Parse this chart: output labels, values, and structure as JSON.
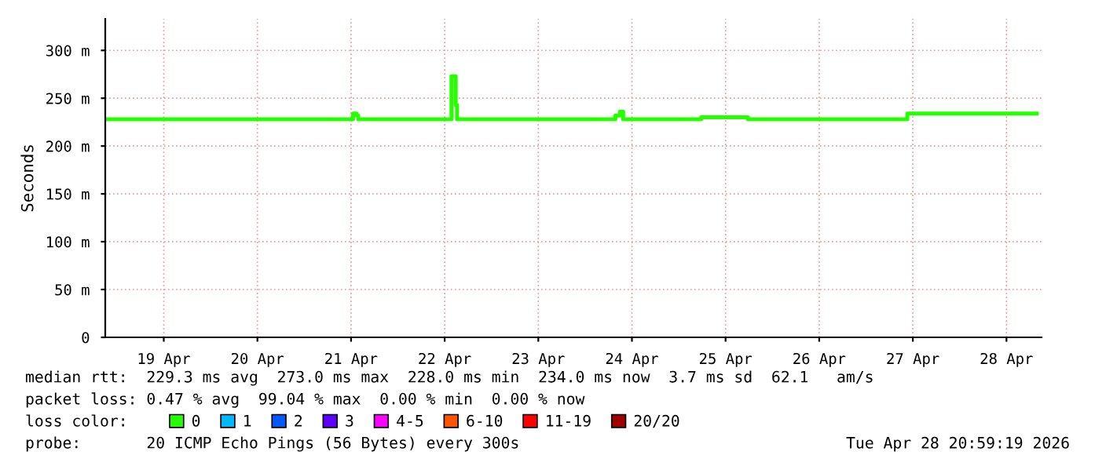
{
  "chart_data": {
    "type": "step",
    "ylabel": "Seconds",
    "legend_title": "loss color:",
    "legend": "bottom",
    "grid": true,
    "x": [
      "2026-04-18T21:20",
      "2026-04-21T12:30",
      "2026-04-21T13:25",
      "2026-04-21T13:50",
      "2026-04-22T13:45",
      "2026-04-22T14:50",
      "2026-04-22T15:10",
      "2026-04-24T07:45",
      "2026-04-24T08:55",
      "2026-04-24T09:45",
      "2026-04-25T05:45",
      "2026-04-25T17:45",
      "2026-04-27T10:35",
      "2026-04-28T19:45"
    ],
    "series": [
      {
        "name": "0",
        "color": "#26ff00",
        "values": [
          228,
          234,
          232,
          228,
          273,
          243,
          228,
          232,
          236,
          228,
          230,
          228,
          234,
          234
        ]
      },
      {
        "name": "1",
        "color": "#00b8ff",
        "values": [
          null,
          null,
          null,
          null,
          null,
          null,
          null,
          null,
          null,
          null,
          null,
          null,
          null,
          null
        ]
      },
      {
        "name": "2",
        "color": "#0059ff",
        "values": [
          null,
          null,
          null,
          null,
          null,
          null,
          null,
          null,
          null,
          null,
          null,
          null,
          null,
          null
        ]
      },
      {
        "name": "3",
        "color": "#5e00ff",
        "values": [
          null,
          null,
          null,
          null,
          null,
          null,
          null,
          null,
          null,
          null,
          null,
          null,
          null,
          null
        ]
      },
      {
        "name": "4-5",
        "color": "#ff00ff",
        "values": [
          null,
          null,
          null,
          null,
          null,
          null,
          null,
          null,
          null,
          null,
          null,
          null,
          null,
          null
        ]
      },
      {
        "name": "6-10",
        "color": "#ff5500",
        "values": [
          null,
          null,
          null,
          null,
          null,
          null,
          null,
          null,
          null,
          null,
          null,
          null,
          null,
          null
        ]
      },
      {
        "name": "11-19",
        "color": "#ff0000",
        "values": [
          null,
          null,
          null,
          null,
          null,
          null,
          null,
          null,
          null,
          null,
          null,
          null,
          null,
          null
        ]
      },
      {
        "name": "20/20",
        "color": "#a10000",
        "values": [
          null,
          null,
          null,
          null,
          null,
          null,
          null,
          null,
          null,
          null,
          null,
          null,
          null,
          null
        ]
      }
    ],
    "xlim": [
      "2026-04-18T21:00",
      "2026-04-28T21:00"
    ],
    "xticks": [
      {
        "value": "2026-04-19T12:00",
        "label": "19 Apr"
      },
      {
        "value": "2026-04-20T12:00",
        "label": "20 Apr"
      },
      {
        "value": "2026-04-21T12:00",
        "label": "21 Apr"
      },
      {
        "value": "2026-04-22T12:00",
        "label": "22 Apr"
      },
      {
        "value": "2026-04-23T12:00",
        "label": "23 Apr"
      },
      {
        "value": "2026-04-24T12:00",
        "label": "24 Apr"
      },
      {
        "value": "2026-04-25T12:00",
        "label": "25 Apr"
      },
      {
        "value": "2026-04-26T12:00",
        "label": "26 Apr"
      },
      {
        "value": "2026-04-27T12:00",
        "label": "27 Apr"
      },
      {
        "value": "2026-04-28T12:00",
        "label": "28 Apr"
      }
    ],
    "ylim": [
      0,
      333
    ],
    "yticks": [
      {
        "value": 0,
        "label": "0"
      },
      {
        "value": 50,
        "label": "50 m"
      },
      {
        "value": 100,
        "label": "100 m"
      },
      {
        "value": 150,
        "label": "150 m"
      },
      {
        "value": 200,
        "label": "200 m"
      },
      {
        "value": 250,
        "label": "250 m"
      },
      {
        "value": 300,
        "label": "300 m"
      }
    ],
    "annotations": [
      "median rtt:  229.3 ms avg  273.0 ms max  228.0 ms min  234.0 ms now  3.7 ms sd  62.1   am/s",
      "packet loss: 0.47 % avg  99.04 % max  0.00 % min  0.00 % now",
      "probe:       20 ICMP Echo Pings (56 Bytes) every 300s",
      "Tue Apr 28 20:59:19 2026"
    ]
  }
}
